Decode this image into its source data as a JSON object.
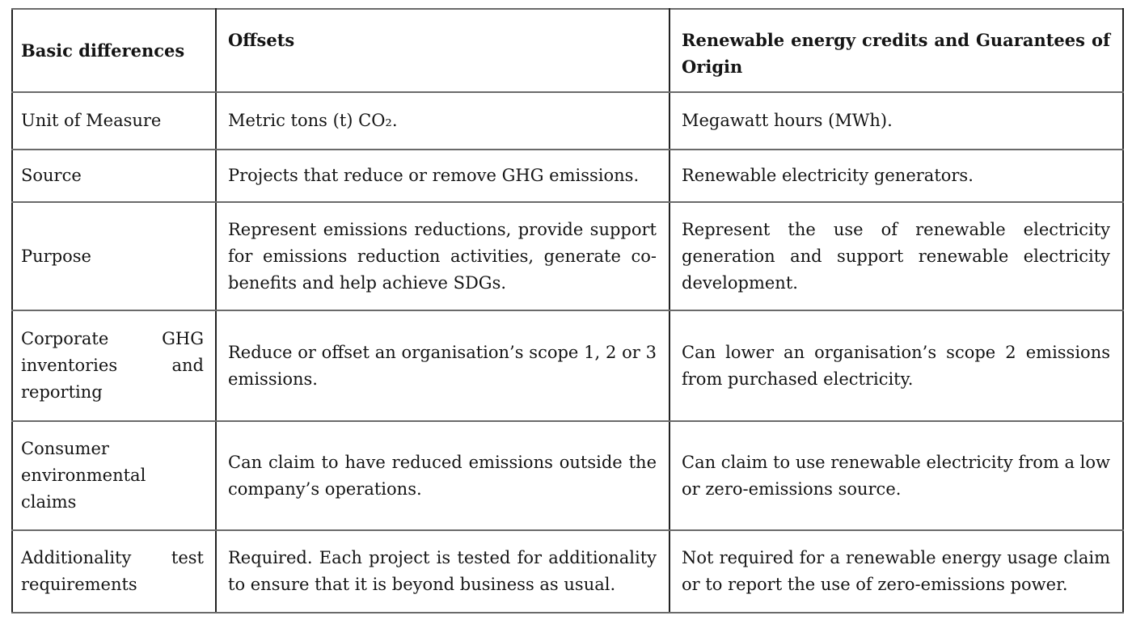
{
  "table": {
    "title_semantic": "Comparison of offsets and renewable energy credits",
    "columns": [
      "Basic differences",
      "Offsets",
      "Renewable energy credits and Guarantees of Origin"
    ],
    "rows": [
      {
        "label": "Unit of Measure",
        "offsets": "Metric tons (t) CO₂.",
        "recs": "Megawatt hours (MWh)."
      },
      {
        "label": "Source",
        "offsets": "Projects that reduce or remove GHG emissions.",
        "recs": "Renewable electricity generators."
      },
      {
        "label": "Purpose",
        "offsets": "Represent emissions reductions, provide support for emissions reduction activities, generate co-benefits and help achieve SDGs.",
        "recs": "Represent the use of renewable electricity generation and support renewable electricity development."
      },
      {
        "label": "Corporate GHG inventories and reporting",
        "offsets": "Reduce or offset an organisation’s scope 1, 2 or 3 emissions.",
        "recs": "Can lower an organisation’s scope 2 emissions from purchased electricity."
      },
      {
        "label": "Consumer environmental claims",
        "offsets": "Can claim to have reduced emissions outside the company’s operations.",
        "recs": "Can claim to use renewable electricity from a low or zero-emissions source."
      },
      {
        "label": "Additionality test requirements",
        "offsets": "Required. Each project is tested for additionality to ensure that it is beyond business as usual.",
        "recs": "Not required for a renewable energy usage claim or to report the use of zero-emissions power."
      }
    ],
    "colors": {
      "horizontal_border": "#6a6a6a",
      "vertical_border": "#222222",
      "text": "#141414",
      "background": "#ffffff"
    }
  }
}
